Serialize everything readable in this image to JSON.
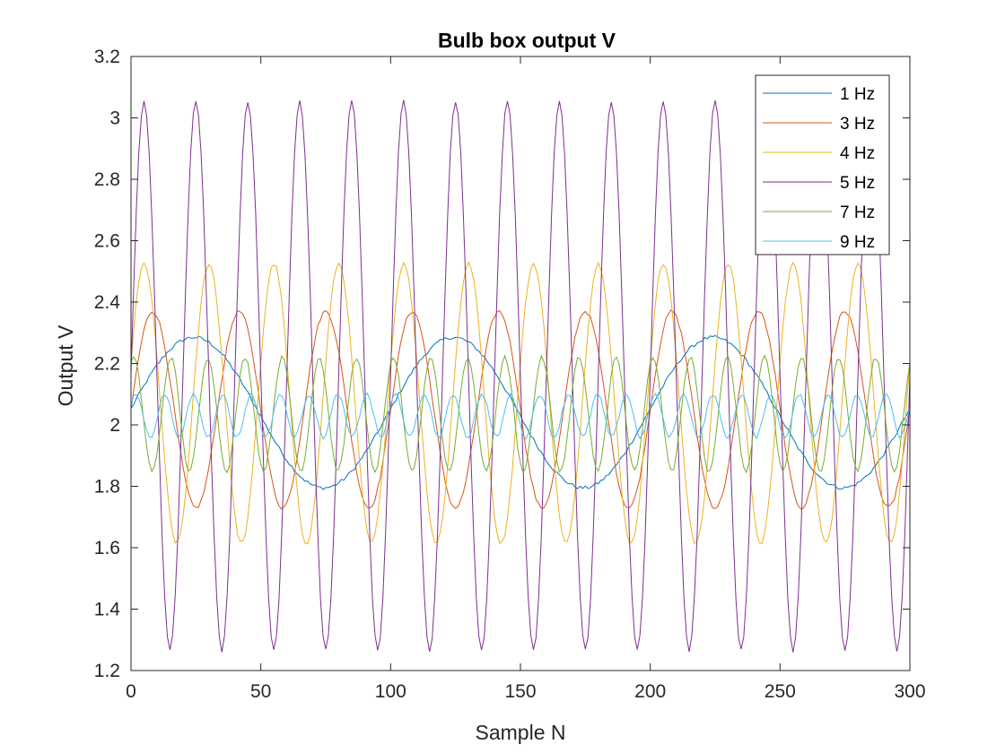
{
  "chart_data": {
    "type": "line",
    "title": "Bulb box output V",
    "xlabel": "Sample N",
    "ylabel": "Output V",
    "xlim": [
      0,
      300
    ],
    "ylim": [
      1.2,
      3.2
    ],
    "xticks": [
      0,
      50,
      100,
      150,
      200,
      250,
      300
    ],
    "xtick_labels": [
      "0",
      "50",
      "100",
      "150",
      "200",
      "250",
      "300"
    ],
    "yticks": [
      1.2,
      1.4,
      1.6,
      1.8,
      2,
      2.2,
      2.4,
      2.6,
      2.8,
      3,
      3.2
    ],
    "ytick_labels": [
      "1.2",
      "1.4",
      "1.6",
      "1.8",
      "2",
      "2.2",
      "2.4",
      "2.6",
      "2.8",
      "3",
      "3.2"
    ],
    "grid": false,
    "legend_position": "top-right",
    "x": {
      "start": 0,
      "end": 300,
      "step": 1
    },
    "series": [
      {
        "name": "1 Hz",
        "color": "#0072BD",
        "mean": 2.04,
        "amplitude": 0.245,
        "period": 100,
        "phase": 0.05,
        "approx_values": {
          "x": [
            0,
            25,
            50,
            75,
            100,
            125,
            150,
            175,
            200,
            225,
            250,
            275,
            300
          ],
          "y": [
            2.05,
            2.29,
            2.04,
            1.79,
            2.04,
            2.28,
            2.04,
            1.79,
            2.04,
            2.29,
            2.04,
            1.79,
            2.03
          ]
        }
      },
      {
        "name": "3 Hz",
        "color": "#D95319",
        "mean": 2.05,
        "amplitude": 0.32,
        "period": 33.33,
        "phase": 0.0,
        "approx_values": {
          "x": [
            0,
            8.3,
            16.7,
            25,
            33.3
          ],
          "y": [
            2.05,
            2.37,
            2.05,
            1.73,
            2.05
          ]
        }
      },
      {
        "name": "4 Hz",
        "color": "#EDB120",
        "mean": 2.07,
        "amplitude": 0.455,
        "period": 25,
        "phase": 0.3,
        "approx_values": {
          "x": [
            0,
            6.25,
            12.5,
            18.75,
            25
          ],
          "y": [
            1.9,
            2.53,
            2.07,
            1.62,
            1.9
          ]
        }
      },
      {
        "name": "5 Hz",
        "color": "#7E2F8E",
        "mean": 2.16,
        "amplitude": 0.895,
        "period": 20,
        "phase": 0.0,
        "approx_values": {
          "x": [
            0,
            5,
            10,
            15,
            20
          ],
          "y": [
            2.31,
            3.05,
            2.16,
            1.27,
            2.31
          ]
        }
      },
      {
        "name": "7 Hz",
        "color": "#77AC30",
        "mean": 2.035,
        "amplitude": 0.185,
        "period": 14.29,
        "phase": 1.1,
        "approx_values": {
          "x": [
            0,
            3.6,
            7.1,
            10.7,
            14.3
          ],
          "y": [
            1.9,
            2.22,
            2.03,
            1.85,
            1.9
          ]
        }
      },
      {
        "name": "9 Hz",
        "color": "#4DBEEE",
        "mean": 2.03,
        "amplitude": 0.07,
        "period": 11.11,
        "phase": 0.5,
        "approx_values": {
          "x": [
            0,
            2.8,
            5.6,
            8.3,
            11.1
          ],
          "y": [
            2.03,
            2.1,
            2.03,
            1.96,
            2.03
          ]
        }
      }
    ]
  }
}
